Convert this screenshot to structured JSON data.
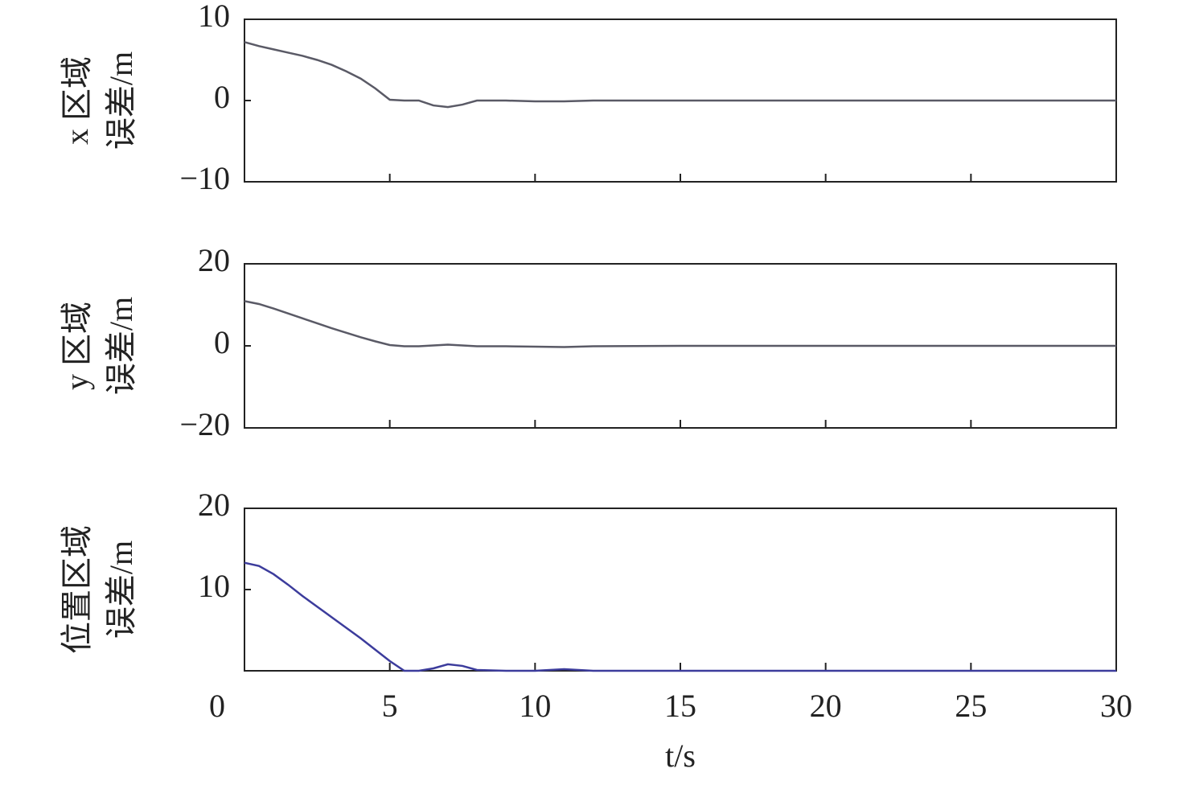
{
  "chart_data": [
    {
      "type": "line",
      "y_label": [
        "x 区域",
        "误差/m"
      ],
      "x": [
        0,
        0.5,
        1,
        1.5,
        2,
        2.5,
        3,
        3.5,
        4,
        4.5,
        5,
        5.5,
        6,
        6.5,
        7,
        7.5,
        8,
        9,
        10,
        11,
        12,
        15,
        20,
        25,
        30
      ],
      "series": [
        {
          "color": "#5a5a66",
          "values": [
            7.2,
            6.7,
            6.3,
            5.9,
            5.5,
            5.0,
            4.4,
            3.6,
            2.7,
            1.5,
            0.1,
            0,
            0,
            -0.6,
            -0.8,
            -0.5,
            0,
            0,
            -0.1,
            -0.1,
            0,
            0,
            0,
            0,
            0
          ]
        }
      ],
      "xlim": [
        0,
        30
      ],
      "xticks": [
        0,
        5,
        10,
        15,
        20,
        25,
        30
      ],
      "ylim": [
        -10,
        10
      ],
      "yticks": [
        {
          "value": -10,
          "label": "−10"
        },
        0,
        10
      ]
    },
    {
      "type": "line",
      "y_label": [
        "y 区域",
        "误差/m"
      ],
      "x": [
        0,
        0.5,
        1,
        1.5,
        2,
        2.5,
        3,
        3.5,
        4,
        4.5,
        5,
        5.5,
        6,
        6.5,
        7,
        7.5,
        8,
        9,
        10,
        11,
        12,
        15,
        20,
        25,
        30
      ],
      "series": [
        {
          "color": "#5a5a66",
          "values": [
            10.9,
            10.2,
            9.1,
            7.9,
            6.7,
            5.5,
            4.3,
            3.2,
            2.1,
            1.1,
            0.2,
            -0.1,
            -0.1,
            0.1,
            0.3,
            0.1,
            -0.1,
            -0.1,
            -0.2,
            -0.3,
            -0.1,
            0,
            0,
            0,
            0
          ]
        }
      ],
      "xlim": [
        0,
        30
      ],
      "xticks": [
        0,
        5,
        10,
        15,
        20,
        25,
        30
      ],
      "ylim": [
        -20,
        20
      ],
      "yticks": [
        {
          "value": -20,
          "label": "−20"
        },
        0,
        20
      ]
    },
    {
      "type": "line",
      "y_label": [
        "位置区域",
        "误差/m"
      ],
      "x_label": "t/s",
      "x": [
        0,
        0.5,
        1,
        1.5,
        2,
        2.5,
        3,
        3.5,
        4,
        4.5,
        5,
        5.5,
        6,
        6.5,
        7,
        7.5,
        8,
        9,
        10,
        11,
        12,
        15,
        20,
        25,
        30
      ],
      "series": [
        {
          "color": "#3c3c9c",
          "values": [
            13.3,
            12.9,
            11.9,
            10.6,
            9.2,
            7.9,
            6.6,
            5.3,
            4.0,
            2.6,
            1.2,
            0,
            0,
            0.3,
            0.8,
            0.6,
            0.1,
            0,
            0,
            0.2,
            0,
            0,
            0,
            0,
            0
          ]
        }
      ],
      "xlim": [
        0,
        30
      ],
      "xticks": [
        0,
        5,
        10,
        15,
        20,
        25,
        30
      ],
      "x_tick_labels": true,
      "ylim": [
        0,
        20
      ],
      "yticks": [
        10,
        20
      ]
    }
  ]
}
